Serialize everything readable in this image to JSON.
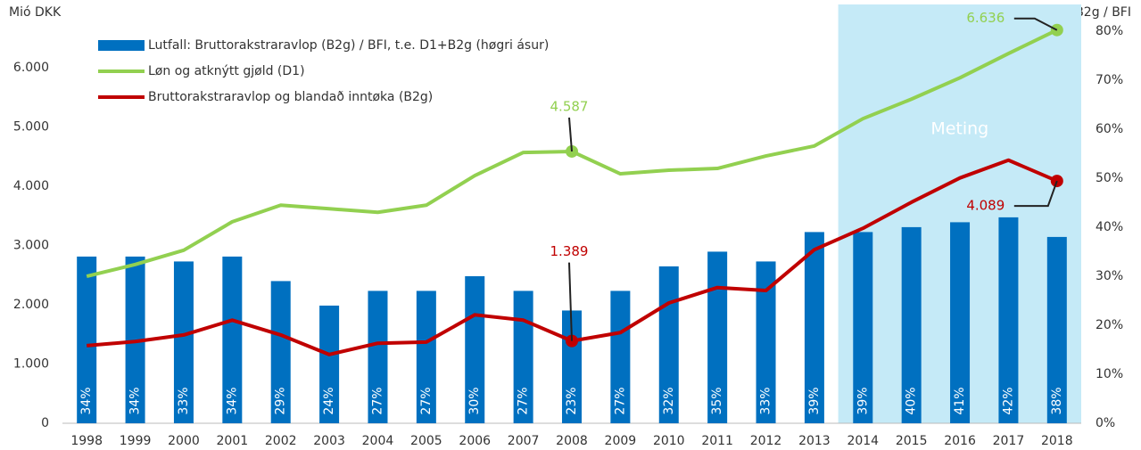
{
  "chart_data": {
    "type": "bar_line",
    "y_axis_label": "Mió DKK",
    "y2_axis_label": "B2g / BFI",
    "categories": [
      "1998",
      "1999",
      "2000",
      "2001",
      "2002",
      "2003",
      "2004",
      "2005",
      "2006",
      "2007",
      "2008",
      "2009",
      "2010",
      "2011",
      "2012",
      "2013",
      "2014",
      "2015",
      "2016",
      "2017",
      "2018"
    ],
    "series": [
      {
        "name": "Lutfall: Bruttorakstraravlop (B2g) / BFI, t.e. D1+B2g (høgri ásur)",
        "color": "#0070c0",
        "kind": "bar",
        "axis": "y2",
        "values": [
          34,
          34,
          33,
          34,
          29,
          24,
          27,
          27,
          30,
          27,
          23,
          27,
          32,
          35,
          33,
          39,
          39,
          40,
          41,
          42,
          38
        ],
        "value_labels": [
          "34%",
          "34%",
          "33%",
          "34%",
          "29%",
          "24%",
          "27%",
          "27%",
          "30%",
          "27%",
          "23%",
          "27%",
          "32%",
          "35%",
          "33%",
          "39%",
          "39%",
          "40%",
          "41%",
          "42%",
          "38%"
        ]
      },
      {
        "name": "Løn og atknýtt gjøld (D1)",
        "color": "#92d050",
        "kind": "line",
        "values": [
          2480,
          2680,
          2920,
          3400,
          3680,
          3620,
          3560,
          3680,
          4180,
          4570,
          4587,
          4210,
          4270,
          4300,
          4510,
          4680,
          5140,
          5470,
          5830,
          6240,
          6636
        ],
        "value_labels": [
          null,
          null,
          null,
          null,
          null,
          null,
          null,
          null,
          null,
          null,
          "4.587",
          null,
          null,
          null,
          null,
          null,
          null,
          null,
          null,
          null,
          "6.636"
        ]
      },
      {
        "name": "Bruttorakstraravlop og blandað inntøka (B2g)",
        "color": "#c00000",
        "kind": "line",
        "values": [
          1310,
          1380,
          1490,
          1740,
          1490,
          1160,
          1350,
          1370,
          1830,
          1740,
          1389,
          1530,
          2030,
          2290,
          2240,
          2930,
          3290,
          3730,
          4140,
          4440,
          4089
        ],
        "value_labels": [
          null,
          null,
          null,
          null,
          null,
          null,
          null,
          null,
          null,
          null,
          "1.389",
          null,
          null,
          null,
          null,
          null,
          null,
          null,
          null,
          null,
          "4.089"
        ]
      }
    ],
    "ylim": [
      0,
      7000
    ],
    "yticks": [
      0,
      {
        "value": 1000,
        "label": "1.000"
      },
      {
        "value": 2000,
        "label": "2.000"
      },
      {
        "value": 3000,
        "label": "3.000"
      },
      {
        "value": 4000,
        "label": "4.000"
      },
      {
        "value": 5000,
        "label": "5.000"
      },
      {
        "value": 6000,
        "label": "6.000"
      }
    ],
    "y2lim": [
      0,
      84.6
    ],
    "y2ticks": [
      {
        "value": 0,
        "label": "0%"
      },
      {
        "value": 10,
        "label": "10%"
      },
      {
        "value": 20,
        "label": "20%"
      },
      {
        "value": 30,
        "label": "30%"
      },
      {
        "value": 40,
        "label": "40%"
      },
      {
        "value": 50,
        "label": "50%"
      },
      {
        "value": 60,
        "label": "60%"
      },
      {
        "value": 70,
        "label": "70%"
      },
      {
        "value": 80,
        "label": "80%"
      }
    ],
    "shaded_region": {
      "label": "Meting",
      "start_index": 16,
      "color": "#c5eaf7"
    }
  }
}
